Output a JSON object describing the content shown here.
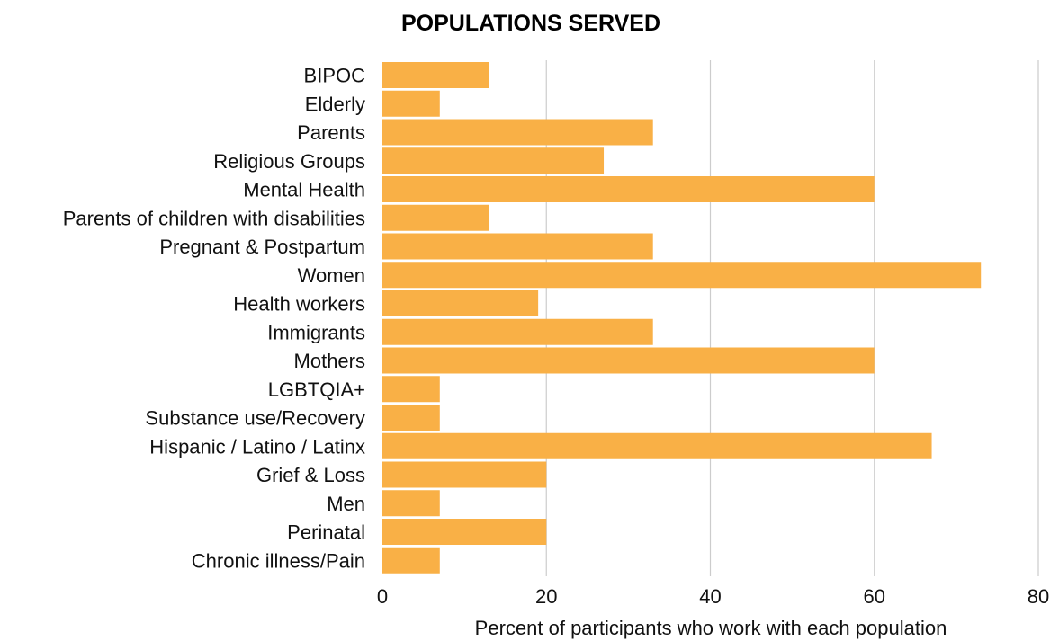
{
  "chart_data": {
    "type": "bar",
    "orientation": "horizontal",
    "title": "POPULATIONS SERVED",
    "xlabel": "Percent of participants who work with each population",
    "ylabel": "",
    "xlim": [
      0,
      80
    ],
    "xticks": [
      0,
      20,
      40,
      60,
      80
    ],
    "grid": "vertical",
    "bar_color": "#F9B046",
    "categories": [
      "BIPOC",
      "Elderly",
      "Parents",
      "Religious Groups",
      "Mental Health",
      "Parents of children with disabilities",
      "Pregnant & Postpartum",
      "Women",
      "Health workers",
      "Immigrants",
      "Mothers",
      "LGBTQIA+",
      "Substance use/Recovery",
      "Hispanic / Latino / Latinx",
      "Grief & Loss",
      "Men",
      "Perinatal",
      "Chronic illness/Pain"
    ],
    "values": [
      13,
      7,
      33,
      27,
      60,
      13,
      33,
      73,
      19,
      33,
      60,
      7,
      7,
      67,
      20,
      7,
      20,
      7
    ]
  }
}
